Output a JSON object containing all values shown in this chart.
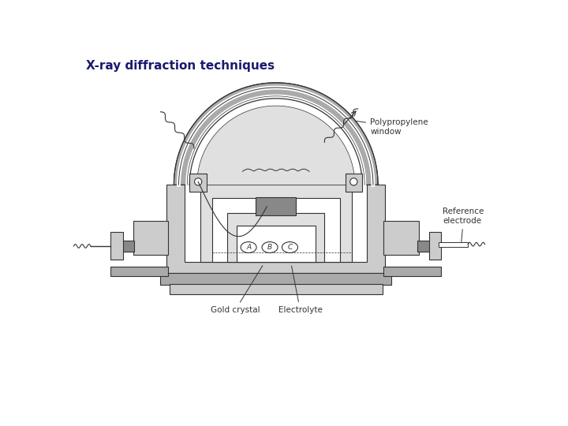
{
  "title": "X-ray diffraction techniques",
  "title_color": "#1a1a6e",
  "title_fontsize": 11,
  "title_weight": "bold",
  "bg_color": "#ffffff",
  "light_gray": "#cccccc",
  "light_gray2": "#e0e0e0",
  "medium_gray": "#aaaaaa",
  "dark_gray": "#888888",
  "darker_gray": "#666666",
  "darkest_gray": "#555555",
  "line_color": "#333333",
  "annotation_fontsize": 7.5,
  "labels": {
    "polypropylene": "Polypropylene\nwindow",
    "reference": "Reference\nelectrode",
    "gold": "Gold crystal",
    "electrolyte": "Electrolyte"
  },
  "cell_labels": [
    "A",
    "B",
    "C"
  ]
}
